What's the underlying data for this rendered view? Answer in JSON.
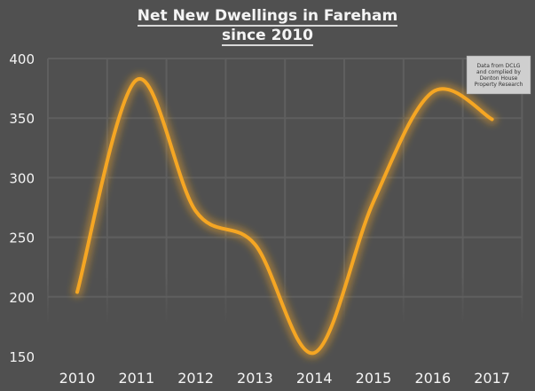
{
  "title": {
    "line1": "Net New Dwellings in Fareham",
    "line2": "since 2010"
  },
  "note": "Data from DCLG and complied by Denton House Property Research",
  "colors": {
    "background": "#505050",
    "line": "#f5a623",
    "grid": "#5e5e5e",
    "text": "#f4f4f4"
  },
  "chart_data": {
    "type": "line",
    "title": "Net New Dwellings in Fareham since 2010",
    "xlabel": "",
    "ylabel": "",
    "categories": [
      "2010",
      "2011",
      "2012",
      "2013",
      "2014",
      "2015",
      "2016",
      "2017"
    ],
    "series": [
      {
        "name": "Net New Dwellings",
        "values": [
          204,
          382,
          272,
          244,
          153,
          280,
          372,
          349
        ]
      }
    ],
    "ylim": [
      150,
      400
    ],
    "yticks": [
      150,
      200,
      250,
      300,
      350,
      400
    ],
    "grid": true,
    "smooth": true,
    "legend": "none",
    "annotation": "Data from DCLG and complied by Denton House Property Research"
  }
}
